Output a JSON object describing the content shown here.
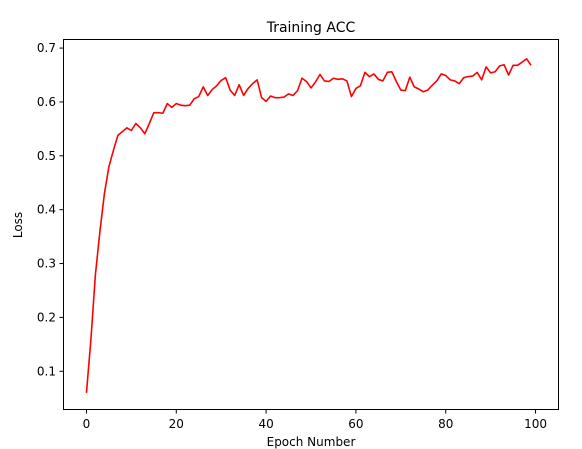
{
  "chart_data": {
    "type": "line",
    "title": "Training ACC",
    "xlabel": "Epoch Number",
    "ylabel": "Loss",
    "xlim": [
      -5,
      105
    ],
    "ylim": [
      0.03,
      0.715
    ],
    "xticks": [
      0,
      20,
      40,
      60,
      80,
      100
    ],
    "yticks": [
      0.1,
      0.2,
      0.3,
      0.4,
      0.5,
      0.6,
      0.7
    ],
    "xtick_labels": [
      "0",
      "20",
      "40",
      "60",
      "80",
      "100"
    ],
    "ytick_labels": [
      "0.1",
      "0.2",
      "0.3",
      "0.4",
      "0.5",
      "0.6",
      "0.7"
    ],
    "grid": false,
    "series": [
      {
        "color": "#ff0000",
        "x": [
          0,
          1,
          2,
          3,
          4,
          5,
          6,
          7,
          8,
          9,
          10,
          11,
          12,
          13,
          14,
          15,
          16,
          17,
          18,
          19,
          20,
          21,
          22,
          23,
          24,
          25,
          26,
          27,
          28,
          29,
          30,
          31,
          32,
          33,
          34,
          35,
          36,
          37,
          38,
          39,
          40,
          41,
          42,
          43,
          44,
          45,
          46,
          47,
          48,
          49,
          50,
          51,
          52,
          53,
          54,
          55,
          56,
          57,
          58,
          59,
          60,
          61,
          62,
          63,
          64,
          65,
          66,
          67,
          68,
          69,
          70,
          71,
          72,
          73,
          74,
          75,
          76,
          77,
          78,
          79,
          80,
          81,
          82,
          83,
          84,
          85,
          86,
          87,
          88,
          89,
          90,
          91,
          92,
          93,
          94,
          95,
          96,
          97,
          98,
          99
        ],
        "y": [
          0.06,
          0.16,
          0.28,
          0.36,
          0.43,
          0.48,
          0.51,
          0.538,
          0.545,
          0.552,
          0.547,
          0.56,
          0.552,
          0.541,
          0.56,
          0.58,
          0.58,
          0.579,
          0.597,
          0.59,
          0.597,
          0.594,
          0.593,
          0.594,
          0.606,
          0.61,
          0.628,
          0.612,
          0.623,
          0.63,
          0.64,
          0.645,
          0.622,
          0.612,
          0.632,
          0.612,
          0.625,
          0.634,
          0.641,
          0.608,
          0.601,
          0.611,
          0.608,
          0.608,
          0.609,
          0.615,
          0.612,
          0.621,
          0.644,
          0.638,
          0.626,
          0.637,
          0.651,
          0.639,
          0.638,
          0.644,
          0.642,
          0.643,
          0.639,
          0.61,
          0.625,
          0.63,
          0.655,
          0.647,
          0.652,
          0.642,
          0.639,
          0.655,
          0.656,
          0.638,
          0.622,
          0.621,
          0.646,
          0.628,
          0.624,
          0.619,
          0.622,
          0.631,
          0.639,
          0.652,
          0.649,
          0.641,
          0.639,
          0.634,
          0.645,
          0.647,
          0.648,
          0.655,
          0.641,
          0.665,
          0.654,
          0.656,
          0.667,
          0.669,
          0.65,
          0.668,
          0.668,
          0.674,
          0.68,
          0.668
        ]
      }
    ]
  }
}
